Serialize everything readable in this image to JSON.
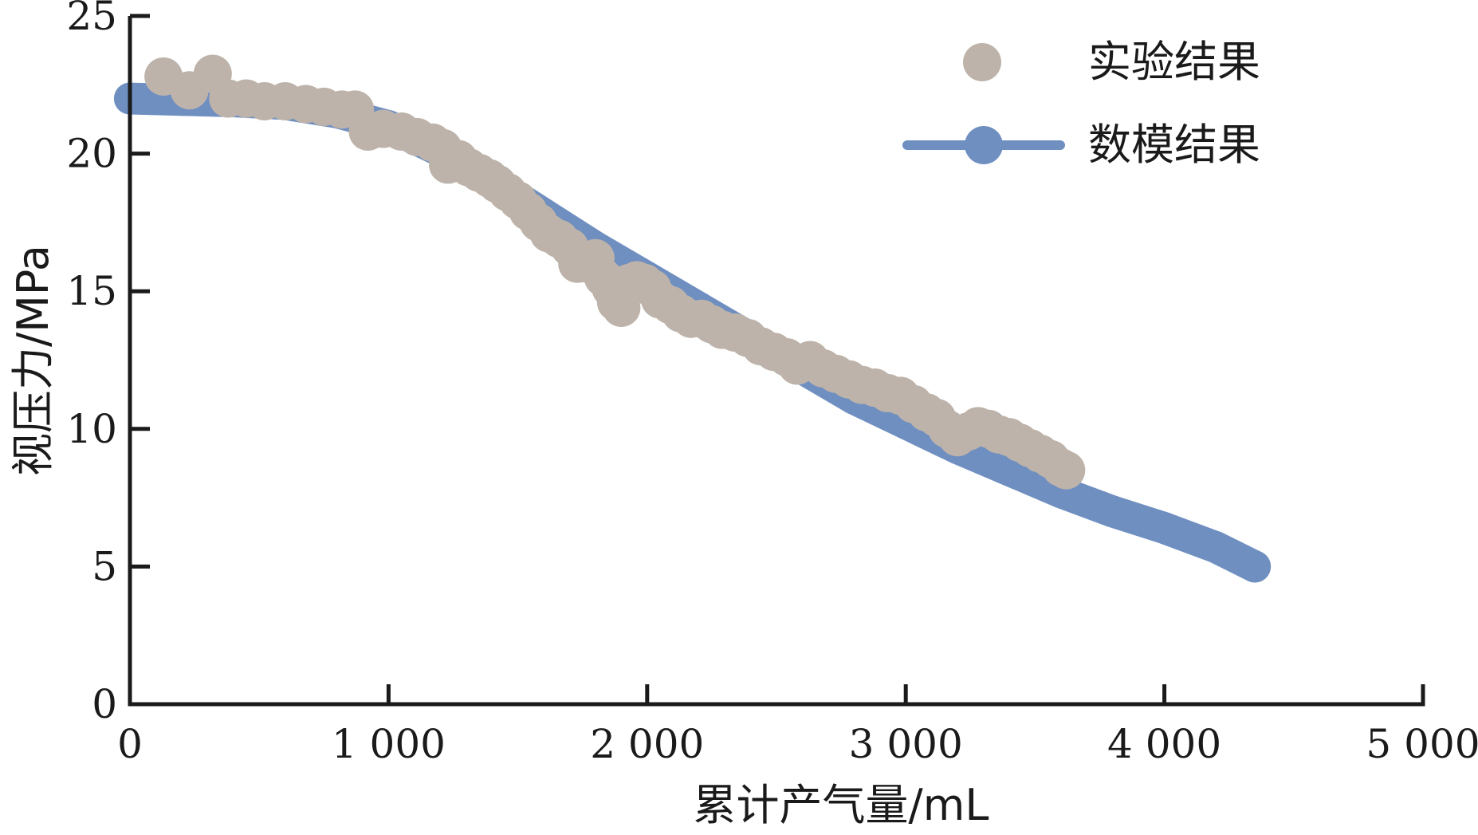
{
  "chart_data": {
    "type": "scatter",
    "xlabel": "累计产气量/mL",
    "ylabel": "视压力/MPa",
    "xlim": [
      0,
      5000
    ],
    "ylim": [
      0,
      25
    ],
    "xticks": [
      {
        "value": 0,
        "label": "0"
      },
      {
        "value": 1000,
        "label": "1 000"
      },
      {
        "value": 2000,
        "label": "2 000"
      },
      {
        "value": 3000,
        "label": "3 000"
      },
      {
        "value": 4000,
        "label": "4 000"
      },
      {
        "value": 5000,
        "label": "5 000"
      }
    ],
    "yticks": [
      {
        "value": 0,
        "label": "0"
      },
      {
        "value": 5,
        "label": "5"
      },
      {
        "value": 10,
        "label": "10"
      },
      {
        "value": 15,
        "label": "15"
      },
      {
        "value": 20,
        "label": "20"
      },
      {
        "value": 25,
        "label": "25"
      }
    ],
    "grid": false,
    "legend_position": "top-right",
    "series": [
      {
        "name": "实验结果",
        "kind": "scatter",
        "color": "#bdb3aa",
        "x": [
          130,
          230,
          320,
          380,
          450,
          520,
          600,
          680,
          750,
          820,
          870,
          920,
          980,
          1050,
          1110,
          1170,
          1210,
          1230,
          1270,
          1310,
          1350,
          1390,
          1420,
          1460,
          1500,
          1540,
          1580,
          1620,
          1660,
          1700,
          1730,
          1770,
          1800,
          1830,
          1860,
          1880,
          1900,
          1930,
          1960,
          1990,
          2020,
          2050,
          2090,
          2130,
          2170,
          2210,
          2250,
          2290,
          2340,
          2390,
          2440,
          2490,
          2540,
          2580,
          2630,
          2680,
          2730,
          2780,
          2830,
          2880,
          2930,
          2980,
          3030,
          3080,
          3120,
          3160,
          3200,
          3240,
          3280,
          3320,
          3360,
          3400,
          3440,
          3480,
          3520,
          3560,
          3600,
          3620
        ],
        "y": [
          22.8,
          22.3,
          22.9,
          22.0,
          22.0,
          21.9,
          21.9,
          21.8,
          21.7,
          21.6,
          21.6,
          20.8,
          20.9,
          20.8,
          20.6,
          20.4,
          20.2,
          19.6,
          19.8,
          19.5,
          19.3,
          19.1,
          18.9,
          18.6,
          18.3,
          17.9,
          17.5,
          17.1,
          16.9,
          16.6,
          16.0,
          16.0,
          16.2,
          15.5,
          15.1,
          14.6,
          14.4,
          15.3,
          15.4,
          15.3,
          15.1,
          14.7,
          14.5,
          14.2,
          14.0,
          14.0,
          13.8,
          13.6,
          13.5,
          13.3,
          13.0,
          12.8,
          12.6,
          12.3,
          12.5,
          12.2,
          12.0,
          11.8,
          11.6,
          11.5,
          11.3,
          11.2,
          10.9,
          10.6,
          10.4,
          10.0,
          9.7,
          9.9,
          10.1,
          10.0,
          9.8,
          9.7,
          9.5,
          9.3,
          9.1,
          8.9,
          8.6,
          8.5
        ]
      },
      {
        "name": "数模结果",
        "kind": "line",
        "color": "#6f8fc0",
        "x": [
          0,
          200,
          400,
          600,
          800,
          1000,
          1200,
          1400,
          1600,
          1800,
          2000,
          2200,
          2400,
          2600,
          2800,
          3000,
          3200,
          3400,
          3600,
          3800,
          4000,
          4200,
          4350
        ],
        "y": [
          22.0,
          21.95,
          21.9,
          21.8,
          21.5,
          21.0,
          20.1,
          19.0,
          17.8,
          16.6,
          15.5,
          14.4,
          13.3,
          12.2,
          11.1,
          10.2,
          9.3,
          8.5,
          7.7,
          7.0,
          6.4,
          5.7,
          5.0
        ]
      }
    ]
  }
}
